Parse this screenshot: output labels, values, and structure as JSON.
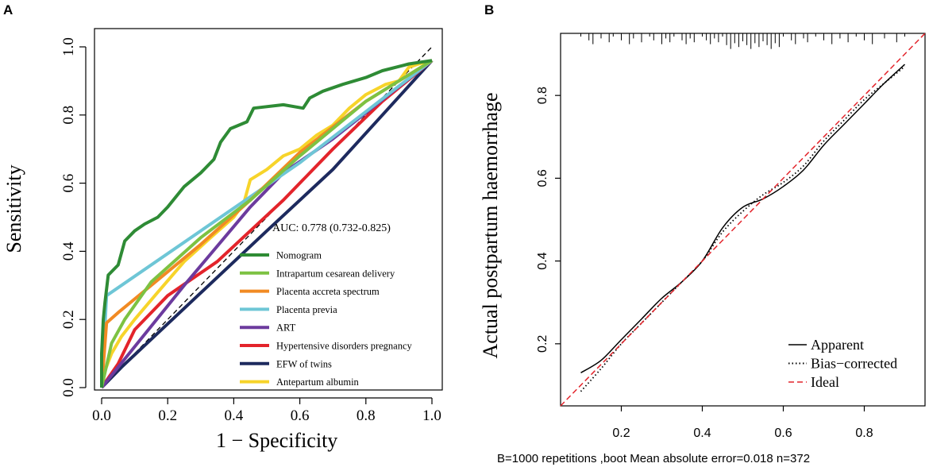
{
  "chart_data": [
    {
      "panel": "A",
      "type": "line",
      "title": "",
      "xlabel": "1 − Specificity",
      "ylabel": "Sensitivity",
      "xlim": [
        0.0,
        1.0
      ],
      "ylim": [
        0.0,
        1.0
      ],
      "xticks": [
        "0.0",
        "0.2",
        "0.4",
        "0.6",
        "0.8",
        "1.0"
      ],
      "yticks": [
        "0.0",
        "0.2",
        "0.4",
        "0.6",
        "0.8",
        "1.0"
      ],
      "annotation": "AUC: 0.778 (0.732-0.825)",
      "reference_line": "diagonal",
      "legend_position": "bottom-right",
      "series": [
        {
          "name": "Nomogram",
          "color": "#2e8b35",
          "points": [
            [
              0,
              0
            ],
            [
              0,
              0.1
            ],
            [
              0.005,
              0.2
            ],
            [
              0.01,
              0.25
            ],
            [
              0.02,
              0.33
            ],
            [
              0.05,
              0.36
            ],
            [
              0.07,
              0.43
            ],
            [
              0.1,
              0.46
            ],
            [
              0.13,
              0.48
            ],
            [
              0.17,
              0.5
            ],
            [
              0.2,
              0.53
            ],
            [
              0.25,
              0.59
            ],
            [
              0.3,
              0.63
            ],
            [
              0.34,
              0.67
            ],
            [
              0.36,
              0.72
            ],
            [
              0.39,
              0.76
            ],
            [
              0.44,
              0.78
            ],
            [
              0.46,
              0.82
            ],
            [
              0.55,
              0.83
            ],
            [
              0.61,
              0.82
            ],
            [
              0.63,
              0.85
            ],
            [
              0.67,
              0.87
            ],
            [
              0.73,
              0.89
            ],
            [
              0.8,
              0.91
            ],
            [
              0.85,
              0.93
            ],
            [
              0.93,
              0.95
            ],
            [
              1,
              0.96
            ]
          ]
        },
        {
          "name": "Intrapartum cesarean delivery",
          "color": "#7dc242",
          "points": [
            [
              0,
              0
            ],
            [
              0.03,
              0.13
            ],
            [
              0.07,
              0.2
            ],
            [
              0.15,
              0.31
            ],
            [
              0.3,
              0.44
            ],
            [
              0.45,
              0.55
            ],
            [
              0.6,
              0.68
            ],
            [
              0.8,
              0.84
            ],
            [
              1,
              0.96
            ]
          ]
        },
        {
          "name": "Placenta accreta spectrum",
          "color": "#f18a23",
          "points": [
            [
              0,
              0
            ],
            [
              0.015,
              0.19
            ],
            [
              0.05,
              0.22
            ],
            [
              0.15,
              0.3
            ],
            [
              0.3,
              0.42
            ],
            [
              0.45,
              0.55
            ],
            [
              0.6,
              0.69
            ],
            [
              0.8,
              0.84
            ],
            [
              1,
              0.96
            ]
          ]
        },
        {
          "name": "Placenta previa",
          "color": "#6ec6d6",
          "points": [
            [
              0,
              0
            ],
            [
              0.015,
              0.27
            ],
            [
              0.6,
              0.66
            ],
            [
              1,
              0.96
            ]
          ]
        },
        {
          "name": "ART",
          "color": "#6c3b9e",
          "points": [
            [
              0,
              0
            ],
            [
              0.05,
              0.06
            ],
            [
              0.25,
              0.3
            ],
            [
              0.45,
              0.53
            ],
            [
              0.55,
              0.63
            ],
            [
              0.7,
              0.73
            ],
            [
              1,
              0.96
            ]
          ]
        },
        {
          "name": "Hypertensive disorders  pregnancy",
          "color": "#e3242b",
          "points": [
            [
              0,
              0
            ],
            [
              0.05,
              0.07
            ],
            [
              0.1,
              0.17
            ],
            [
              0.2,
              0.27
            ],
            [
              0.35,
              0.37
            ],
            [
              0.55,
              0.55
            ],
            [
              0.7,
              0.7
            ],
            [
              0.85,
              0.84
            ],
            [
              1,
              0.96
            ]
          ]
        },
        {
          "name": "EFW of twins",
          "color": "#1d2a5e",
          "points": [
            [
              0,
              0
            ],
            [
              0.06,
              0.06
            ],
            [
              0.5,
              0.46
            ],
            [
              0.7,
              0.64
            ],
            [
              0.85,
              0.8
            ],
            [
              1,
              0.96
            ]
          ]
        },
        {
          "name": "Antepartum albumin",
          "color": "#f7d42a",
          "points": [
            [
              0,
              0
            ],
            [
              0.01,
              0.05
            ],
            [
              0.03,
              0.1
            ],
            [
              0.06,
              0.15
            ],
            [
              0.1,
              0.2
            ],
            [
              0.17,
              0.28
            ],
            [
              0.25,
              0.37
            ],
            [
              0.33,
              0.44
            ],
            [
              0.4,
              0.5
            ],
            [
              0.43,
              0.54
            ],
            [
              0.45,
              0.61
            ],
            [
              0.5,
              0.64
            ],
            [
              0.55,
              0.68
            ],
            [
              0.6,
              0.7
            ],
            [
              0.65,
              0.74
            ],
            [
              0.7,
              0.77
            ],
            [
              0.75,
              0.82
            ],
            [
              0.8,
              0.86
            ],
            [
              0.86,
              0.89
            ],
            [
              0.9,
              0.9
            ],
            [
              0.93,
              0.94
            ],
            [
              0.96,
              0.95
            ],
            [
              1,
              0.96
            ]
          ]
        }
      ]
    },
    {
      "panel": "B",
      "type": "line",
      "title": "",
      "xlabel": "",
      "ylabel": "Actual postpartum haemorrhage",
      "xlim": [
        0.05,
        0.95
      ],
      "ylim": [
        0.05,
        0.95
      ],
      "xticks": [
        "0.2",
        "0.4",
        "0.6",
        "0.8"
      ],
      "yticks": [
        "0.2",
        "0.4",
        "0.6",
        "0.8"
      ],
      "footer": "B=1000 repetitions ,boot     Mean absolute error=0.018 n=372",
      "legend_position": "bottom-right",
      "series": [
        {
          "name": "Apparent",
          "color": "#000000",
          "style": "solid",
          "points": [
            [
              0.1,
              0.13
            ],
            [
              0.15,
              0.16
            ],
            [
              0.2,
              0.21
            ],
            [
              0.25,
              0.26
            ],
            [
              0.3,
              0.31
            ],
            [
              0.35,
              0.35
            ],
            [
              0.4,
              0.4
            ],
            [
              0.45,
              0.48
            ],
            [
              0.5,
              0.53
            ],
            [
              0.55,
              0.55
            ],
            [
              0.6,
              0.58
            ],
            [
              0.65,
              0.62
            ],
            [
              0.7,
              0.68
            ],
            [
              0.75,
              0.73
            ],
            [
              0.8,
              0.78
            ],
            [
              0.85,
              0.83
            ],
            [
              0.9,
              0.875
            ]
          ]
        },
        {
          "name": "Bias−corrected",
          "color": "#000000",
          "style": "dotted",
          "points": [
            [
              0.1,
              0.085
            ],
            [
              0.15,
              0.14
            ],
            [
              0.2,
              0.2
            ],
            [
              0.25,
              0.25
            ],
            [
              0.3,
              0.3
            ],
            [
              0.35,
              0.35
            ],
            [
              0.4,
              0.4
            ],
            [
              0.45,
              0.47
            ],
            [
              0.5,
              0.52
            ],
            [
              0.55,
              0.56
            ],
            [
              0.6,
              0.59
            ],
            [
              0.65,
              0.63
            ],
            [
              0.7,
              0.69
            ],
            [
              0.75,
              0.74
            ],
            [
              0.8,
              0.79
            ],
            [
              0.85,
              0.83
            ],
            [
              0.9,
              0.87
            ]
          ]
        },
        {
          "name": "Ideal",
          "color": "#e3242b",
          "style": "dashed",
          "points": [
            [
              0.05,
              0.05
            ],
            [
              0.95,
              0.95
            ]
          ]
        }
      ],
      "rug_ticks": [
        0.1,
        0.12,
        0.13,
        0.15,
        0.17,
        0.18,
        0.2,
        0.22,
        0.23,
        0.25,
        0.27,
        0.28,
        0.3,
        0.31,
        0.32,
        0.33,
        0.35,
        0.36,
        0.37,
        0.38,
        0.4,
        0.41,
        0.42,
        0.43,
        0.44,
        0.45,
        0.46,
        0.47,
        0.48,
        0.49,
        0.5,
        0.51,
        0.52,
        0.53,
        0.54,
        0.55,
        0.56,
        0.57,
        0.58,
        0.59,
        0.6,
        0.62,
        0.63,
        0.65,
        0.66,
        0.68,
        0.7,
        0.72,
        0.74,
        0.76,
        0.78,
        0.8,
        0.82,
        0.85,
        0.88,
        0.9
      ]
    }
  ],
  "labels": {
    "panel_a": "A",
    "panel_b": "B"
  }
}
